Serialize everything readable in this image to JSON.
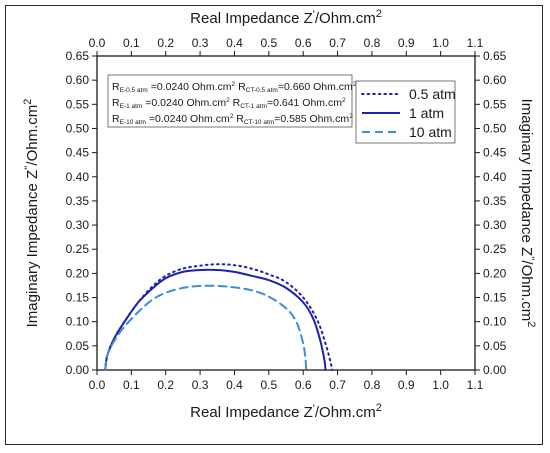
{
  "chart_data": {
    "type": "line",
    "xlabel_main": "Real Impedance Z",
    "xlabel_prime": "'",
    "xlabel_unit": "/Ohm.cm",
    "xlabel_sup": "2",
    "ylabel_main": "Imaginary Impedance Z",
    "ylabel_prime": "''",
    "ylabel_unit": "/Ohm.cm",
    "ylabel_sup": "2",
    "xlim": [
      0.0,
      1.1
    ],
    "ylim": [
      0.0,
      0.65
    ],
    "x_ticks": [
      "0.0",
      "0.1",
      "0.2",
      "0.3",
      "0.4",
      "0.5",
      "0.6",
      "0.7",
      "0.8",
      "0.9",
      "1.0",
      "1.1"
    ],
    "y_ticks": [
      "0.00",
      "0.05",
      "0.10",
      "0.15",
      "0.20",
      "0.25",
      "0.30",
      "0.35",
      "0.40",
      "0.45",
      "0.50",
      "0.55",
      "0.60",
      "0.65"
    ],
    "grid": false,
    "legend_position": "top-right",
    "annotation": [
      {
        "r1": "R",
        "s1": "E-0.5 atm",
        "t1": " =0.0240 Ohm.cm",
        "p1": "2",
        "r2": " R",
        "s2": "CT-0.5 atm",
        "t2": "=0.660 Ohm.cm",
        "p2": "2"
      },
      {
        "r1": "R",
        "s1": "E-1 atm",
        "t1": " =0.0240 Ohm.cm",
        "p1": "2",
        "r2": " R",
        "s2": "CT-1 atm",
        "t2": "=0.641 Ohm.cm",
        "p2": "2"
      },
      {
        "r1": "R",
        "s1": "E-10 atm",
        "t1": " =0.0240 Ohm.cm",
        "p1": "2",
        "r2": " R",
        "s2": "CT-10 atm",
        "t2": "=0.585 Ohm.cm",
        "p2": "2"
      }
    ],
    "series": [
      {
        "name": "0.5 atm",
        "style": "dotted",
        "color": "#1f1fb0",
        "points": [
          [
            0.024,
            0.0
          ],
          [
            0.03,
            0.03
          ],
          [
            0.05,
            0.065
          ],
          [
            0.08,
            0.1
          ],
          [
            0.12,
            0.14
          ],
          [
            0.16,
            0.172
          ],
          [
            0.2,
            0.195
          ],
          [
            0.25,
            0.21
          ],
          [
            0.3,
            0.216
          ],
          [
            0.35,
            0.219
          ],
          [
            0.4,
            0.217
          ],
          [
            0.45,
            0.21
          ],
          [
            0.5,
            0.198
          ],
          [
            0.55,
            0.182
          ],
          [
            0.6,
            0.15
          ],
          [
            0.64,
            0.105
          ],
          [
            0.665,
            0.055
          ],
          [
            0.68,
            0.015
          ],
          [
            0.684,
            0.0
          ]
        ]
      },
      {
        "name": "1 atm",
        "style": "solid",
        "color": "#1f1fb0",
        "points": [
          [
            0.024,
            0.0
          ],
          [
            0.03,
            0.03
          ],
          [
            0.05,
            0.065
          ],
          [
            0.08,
            0.1
          ],
          [
            0.12,
            0.14
          ],
          [
            0.16,
            0.168
          ],
          [
            0.2,
            0.19
          ],
          [
            0.25,
            0.203
          ],
          [
            0.3,
            0.207
          ],
          [
            0.35,
            0.207
          ],
          [
            0.4,
            0.203
          ],
          [
            0.45,
            0.195
          ],
          [
            0.5,
            0.186
          ],
          [
            0.55,
            0.17
          ],
          [
            0.6,
            0.14
          ],
          [
            0.63,
            0.105
          ],
          [
            0.65,
            0.06
          ],
          [
            0.662,
            0.02
          ],
          [
            0.665,
            0.0
          ]
        ]
      },
      {
        "name": "10 atm",
        "style": "dashed",
        "color": "#3a8fd6",
        "points": [
          [
            0.024,
            0.0
          ],
          [
            0.03,
            0.03
          ],
          [
            0.05,
            0.06
          ],
          [
            0.08,
            0.09
          ],
          [
            0.12,
            0.12
          ],
          [
            0.16,
            0.145
          ],
          [
            0.2,
            0.16
          ],
          [
            0.25,
            0.17
          ],
          [
            0.3,
            0.174
          ],
          [
            0.35,
            0.174
          ],
          [
            0.4,
            0.171
          ],
          [
            0.45,
            0.165
          ],
          [
            0.5,
            0.152
          ],
          [
            0.55,
            0.128
          ],
          [
            0.58,
            0.1
          ],
          [
            0.6,
            0.055
          ],
          [
            0.607,
            0.02
          ],
          [
            0.609,
            0.0
          ]
        ]
      }
    ]
  }
}
